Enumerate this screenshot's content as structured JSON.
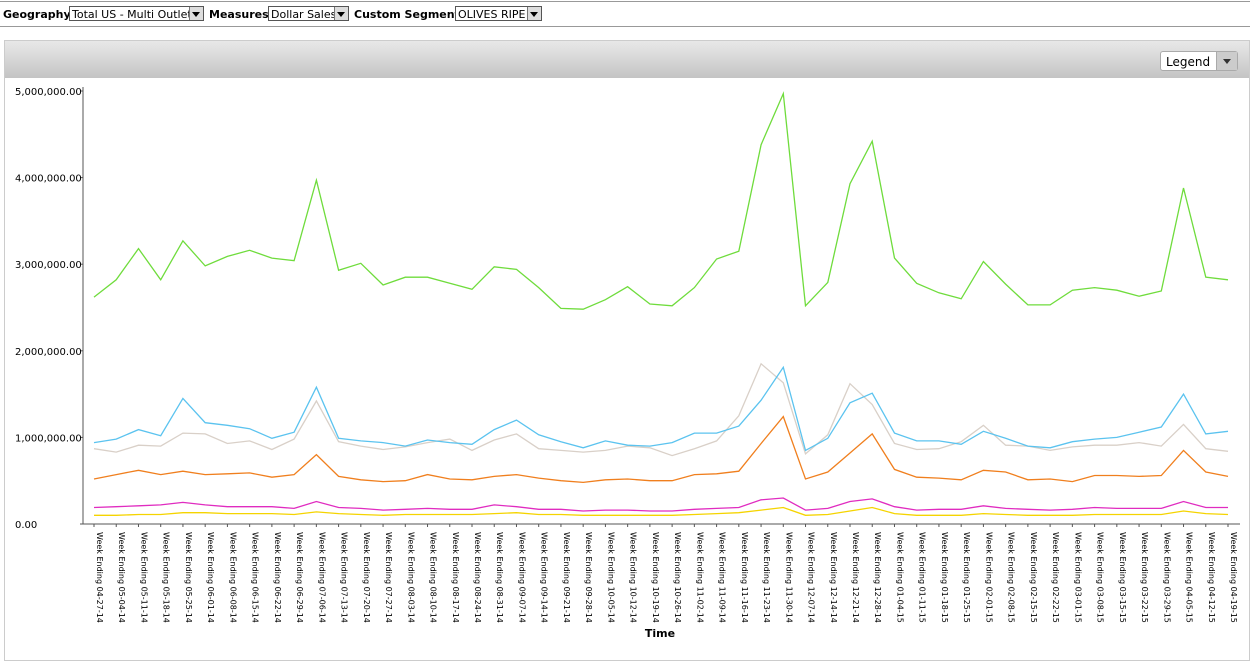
{
  "toolbar": {
    "geography_label": "Geography",
    "geography_value": "Total US - Multi Outlet",
    "measures_label": "Measures",
    "measures_value": "Dollar Sales",
    "segment_label": "Custom Segment",
    "segment_value": "OLIVES RIPE"
  },
  "legend_button": "Legend",
  "chart_data": {
    "type": "line",
    "x_label": "Time",
    "categories": [
      "Week Ending 04-27-14",
      "Week Ending 05-04-14",
      "Week Ending 05-11-14",
      "Week Ending 05-18-14",
      "Week Ending 05-25-14",
      "Week Ending 06-01-14",
      "Week Ending 06-08-14",
      "Week Ending 06-15-14",
      "Week Ending 06-22-14",
      "Week Ending 06-29-14",
      "Week Ending 07-06-14",
      "Week Ending 07-13-14",
      "Week Ending 07-20-14",
      "Week Ending 07-27-14",
      "Week Ending 08-03-14",
      "Week Ending 08-10-14",
      "Week Ending 08-17-14",
      "Week Ending 08-24-14",
      "Week Ending 08-31-14",
      "Week Ending 09-07-14",
      "Week Ending 09-14-14",
      "Week Ending 09-21-14",
      "Week Ending 09-28-14",
      "Week Ending 10-05-14",
      "Week Ending 10-12-14",
      "Week Ending 10-19-14",
      "Week Ending 10-26-14",
      "Week Ending 11-02-14",
      "Week Ending 11-09-14",
      "Week Ending 11-16-14",
      "Week Ending 11-23-14",
      "Week Ending 11-30-14",
      "Week Ending 12-07-14",
      "Week Ending 12-14-14",
      "Week Ending 12-21-14",
      "Week Ending 12-28-14",
      "Week Ending 01-04-15",
      "Week Ending 01-11-15",
      "Week Ending 01-18-15",
      "Week Ending 01-25-15",
      "Week Ending 02-01-15",
      "Week Ending 02-08-15",
      "Week Ending 02-15-15",
      "Week Ending 02-22-15",
      "Week Ending 03-01-15",
      "Week Ending 03-08-15",
      "Week Ending 03-15-15",
      "Week Ending 03-22-15",
      "Week Ending 03-29-15",
      "Week Ending 04-05-15",
      "Week Ending 04-12-15",
      "Week Ending 04-19-15"
    ],
    "ylim": [
      0,
      5000000
    ],
    "yticks": [
      {
        "value": 0,
        "label": "0.00"
      },
      {
        "value": 1000000,
        "label": "1,000,000.00"
      },
      {
        "value": 2000000,
        "label": "2,000,000.00"
      },
      {
        "value": 3000000,
        "label": "3,000,000.00"
      },
      {
        "value": 4000000,
        "label": "4,000,000.00"
      },
      {
        "value": 5000000,
        "label": "5,000,000.00"
      }
    ],
    "series": [
      {
        "color": "#6fdc3c",
        "values": [
          2620000,
          2820000,
          3180000,
          2820000,
          3270000,
          2980000,
          3090000,
          3160000,
          3070000,
          3040000,
          3970000,
          2930000,
          3010000,
          2760000,
          2850000,
          2850000,
          2780000,
          2710000,
          2970000,
          2940000,
          2730000,
          2490000,
          2480000,
          2590000,
          2740000,
          2540000,
          2520000,
          2730000,
          3060000,
          3150000,
          4380000,
          4970000,
          2520000,
          2790000,
          3930000,
          4420000,
          3070000,
          2780000,
          2670000,
          2600000,
          3030000,
          2770000,
          2530000,
          2530000,
          2700000,
          2730000,
          2700000,
          2630000,
          2690000,
          3880000,
          2850000,
          2820000
        ]
      },
      {
        "color": "#d9d0c8",
        "values": [
          870000,
          830000,
          910000,
          900000,
          1050000,
          1040000,
          930000,
          960000,
          860000,
          980000,
          1420000,
          950000,
          900000,
          860000,
          890000,
          940000,
          980000,
          850000,
          970000,
          1040000,
          870000,
          850000,
          830000,
          850000,
          900000,
          880000,
          790000,
          870000,
          960000,
          1250000,
          1850000,
          1630000,
          810000,
          1030000,
          1620000,
          1380000,
          930000,
          860000,
          870000,
          950000,
          1140000,
          910000,
          900000,
          850000,
          890000,
          910000,
          910000,
          940000,
          900000,
          1150000,
          870000,
          840000
        ]
      },
      {
        "color": "#5bc3ef",
        "values": [
          940000,
          980000,
          1090000,
          1020000,
          1450000,
          1170000,
          1140000,
          1100000,
          990000,
          1060000,
          1580000,
          990000,
          960000,
          940000,
          900000,
          970000,
          940000,
          920000,
          1090000,
          1200000,
          1030000,
          950000,
          880000,
          960000,
          910000,
          900000,
          940000,
          1050000,
          1050000,
          1130000,
          1430000,
          1810000,
          850000,
          990000,
          1400000,
          1510000,
          1050000,
          960000,
          960000,
          920000,
          1070000,
          990000,
          900000,
          880000,
          950000,
          980000,
          1000000,
          1060000,
          1120000,
          1500000,
          1040000,
          1070000
        ]
      },
      {
        "color": "#f07f1e",
        "values": [
          520000,
          570000,
          620000,
          570000,
          610000,
          570000,
          580000,
          590000,
          540000,
          570000,
          800000,
          550000,
          510000,
          490000,
          500000,
          570000,
          520000,
          510000,
          550000,
          570000,
          530000,
          500000,
          480000,
          510000,
          520000,
          500000,
          500000,
          570000,
          580000,
          610000,
          930000,
          1240000,
          520000,
          600000,
          820000,
          1040000,
          630000,
          540000,
          530000,
          510000,
          620000,
          600000,
          510000,
          520000,
          490000,
          560000,
          560000,
          550000,
          560000,
          850000,
          600000,
          550000
        ]
      },
      {
        "color": "#e02cc0",
        "values": [
          190000,
          200000,
          210000,
          220000,
          250000,
          220000,
          200000,
          200000,
          200000,
          180000,
          260000,
          190000,
          180000,
          160000,
          170000,
          180000,
          170000,
          170000,
          220000,
          200000,
          170000,
          170000,
          150000,
          160000,
          160000,
          150000,
          150000,
          170000,
          180000,
          190000,
          280000,
          300000,
          160000,
          180000,
          260000,
          290000,
          200000,
          160000,
          170000,
          170000,
          210000,
          180000,
          170000,
          160000,
          170000,
          190000,
          180000,
          180000,
          180000,
          260000,
          190000,
          190000
        ]
      },
      {
        "color": "#f5d400",
        "values": [
          100000,
          100000,
          110000,
          110000,
          130000,
          130000,
          120000,
          120000,
          120000,
          110000,
          140000,
          120000,
          110000,
          100000,
          110000,
          110000,
          110000,
          110000,
          120000,
          130000,
          110000,
          110000,
          100000,
          100000,
          100000,
          100000,
          100000,
          110000,
          120000,
          130000,
          160000,
          190000,
          100000,
          110000,
          150000,
          190000,
          120000,
          100000,
          100000,
          100000,
          120000,
          110000,
          100000,
          100000,
          100000,
          110000,
          110000,
          110000,
          110000,
          150000,
          120000,
          110000
        ]
      }
    ]
  }
}
